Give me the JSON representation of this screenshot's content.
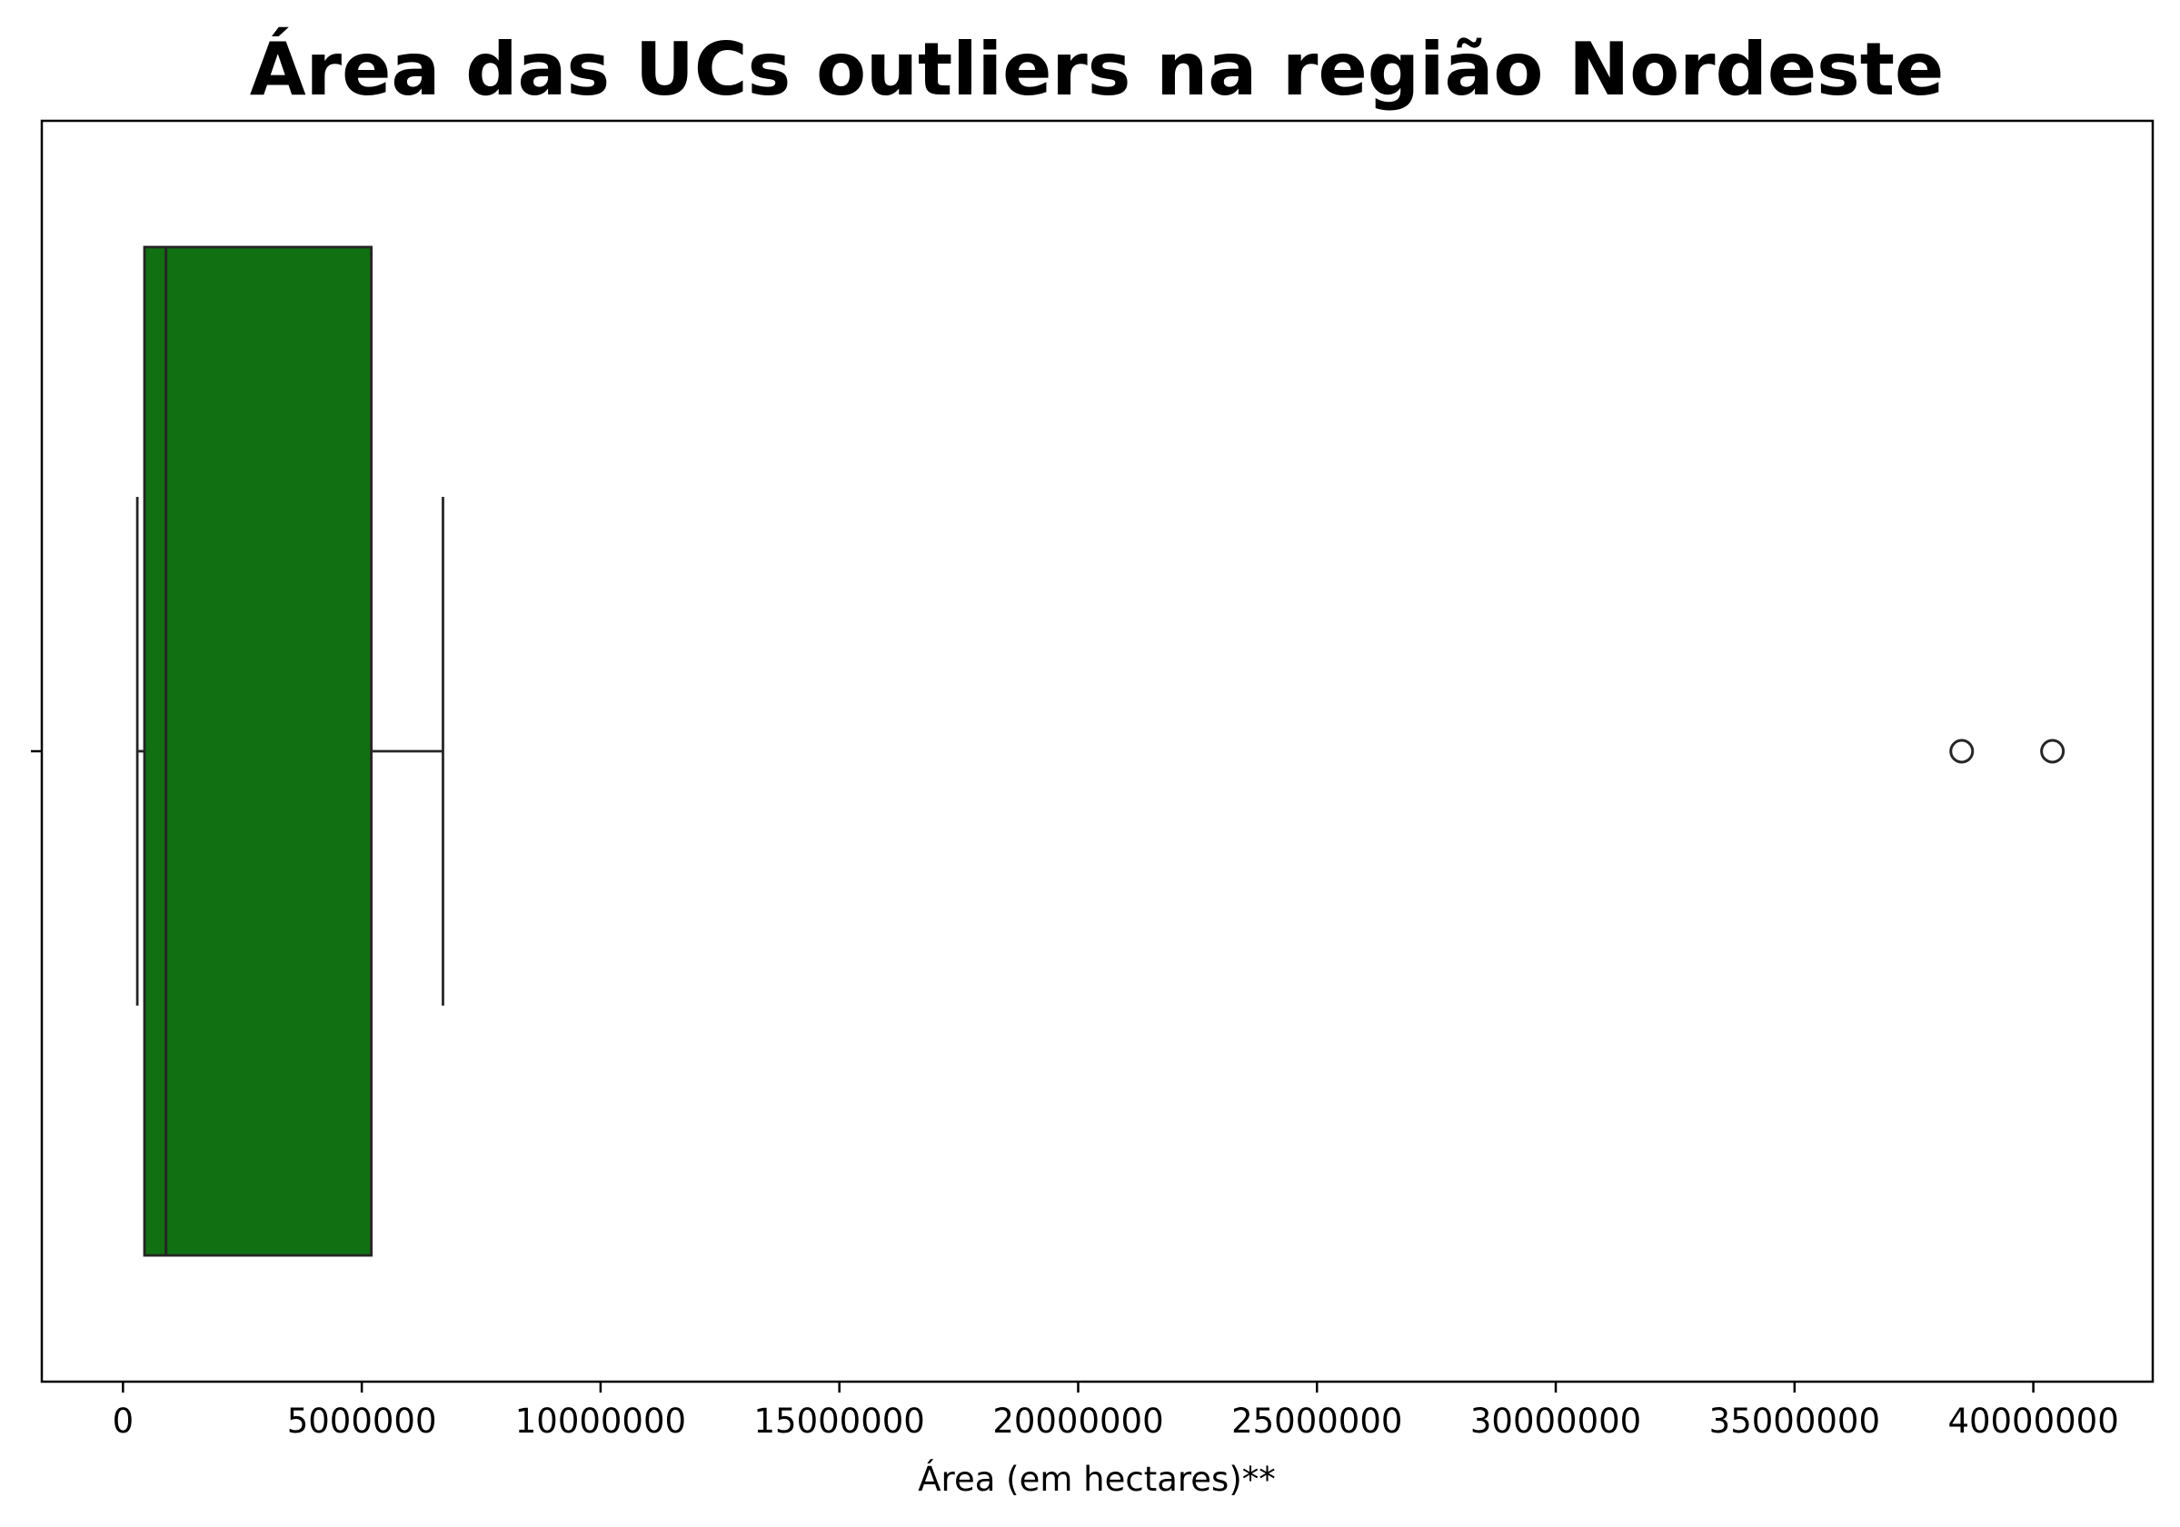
{
  "chart_data": {
    "type": "box",
    "orientation": "horizontal",
    "title": "Área das UCs outliers na região Nordeste",
    "xlabel": "Área (em hectares)**",
    "ylabel": "",
    "xlim": [
      -1700000,
      42500000
    ],
    "xticks": [
      0,
      5000000,
      10000000,
      15000000,
      20000000,
      25000000,
      30000000,
      35000000,
      40000000
    ],
    "xtick_labels": [
      "0",
      "5000000",
      "10000000",
      "15000000",
      "20000000",
      "25000000",
      "30000000",
      "35000000",
      "40000000"
    ],
    "box": {
      "whisker_low": 300000,
      "q1": 450000,
      "median": 900000,
      "q3": 5200000,
      "whisker_high": 6700000,
      "outliers": [
        38500000,
        40400000
      ]
    },
    "colors": {
      "box_fill": "#117011",
      "box_edge": "#262626",
      "axis": "#000000"
    },
    "grid": false,
    "legend": "none"
  }
}
